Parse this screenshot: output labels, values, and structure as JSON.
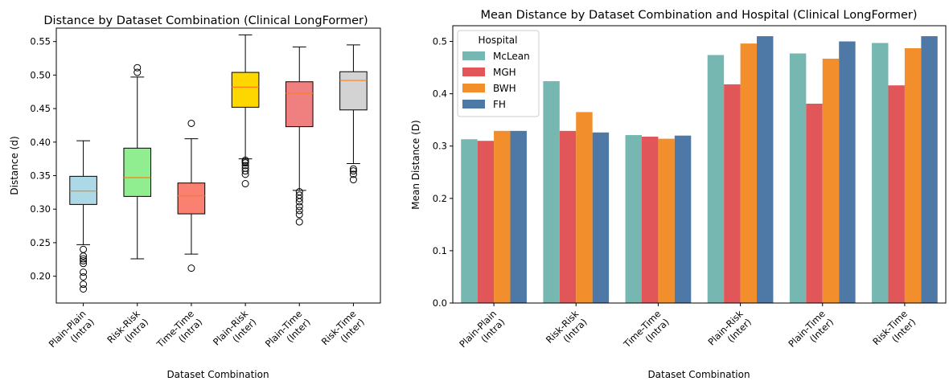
{
  "chart_data": [
    {
      "type": "box",
      "title": "Distance by Dataset Combination (Clinical LongFormer)",
      "xlabel": "Dataset Combination",
      "ylabel": "Distance (d)",
      "ylim": [
        0.16,
        0.57
      ],
      "yticks": [
        0.2,
        0.25,
        0.3,
        0.35,
        0.4,
        0.45,
        0.5,
        0.55
      ],
      "ytick_labels": [
        "0.20",
        "0.25",
        "0.30",
        "0.35",
        "0.40",
        "0.45",
        "0.50",
        "0.55"
      ],
      "grid": false,
      "categories": [
        [
          "Plain-Plain",
          "(Intra)"
        ],
        [
          "Risk-Risk",
          "(Intra)"
        ],
        [
          "Time-Time",
          "(Intra)"
        ],
        [
          "Plain-Risk",
          "(Inter)"
        ],
        [
          "Plain-Time",
          "(Inter)"
        ],
        [
          "Risk-Time",
          "(Inter)"
        ]
      ],
      "boxes": [
        {
          "whisker_low": 0.247,
          "q1": 0.307,
          "median": 0.327,
          "q3": 0.349,
          "whisker_high": 0.402,
          "outliers": [
            0.181,
            0.188,
            0.199,
            0.206,
            0.219,
            0.223,
            0.226,
            0.23,
            0.24
          ],
          "color": "#add8e6"
        },
        {
          "whisker_low": 0.226,
          "q1": 0.319,
          "median": 0.347,
          "q3": 0.391,
          "whisker_high": 0.497,
          "outliers": [
            0.504,
            0.511
          ],
          "color": "#90ee90"
        },
        {
          "whisker_low": 0.233,
          "q1": 0.293,
          "median": 0.32,
          "q3": 0.339,
          "whisker_high": 0.405,
          "outliers": [
            0.212,
            0.428
          ],
          "color": "#fa8072"
        },
        {
          "whisker_low": 0.375,
          "q1": 0.452,
          "median": 0.482,
          "q3": 0.504,
          "whisker_high": 0.56,
          "outliers": [
            0.338,
            0.352,
            0.357,
            0.361,
            0.365,
            0.369,
            0.371,
            0.373
          ],
          "color": "#ffd700"
        },
        {
          "whisker_low": 0.328,
          "q1": 0.423,
          "median": 0.473,
          "q3": 0.49,
          "whisker_high": 0.542,
          "outliers": [
            0.281,
            0.292,
            0.298,
            0.304,
            0.311,
            0.316,
            0.321,
            0.326
          ],
          "color": "#f08080"
        },
        {
          "whisker_low": 0.368,
          "q1": 0.448,
          "median": 0.492,
          "q3": 0.505,
          "whisker_high": 0.545,
          "outliers": [
            0.344,
            0.352,
            0.357,
            0.36
          ],
          "color": "#d3d3d3"
        }
      ],
      "median_color": "#ff7f0e"
    },
    {
      "type": "bar",
      "title": "Mean Distance by Dataset Combination and Hospital (Clinical LongFormer)",
      "xlabel": "Dataset Combination",
      "ylabel": "Mean Distance (D)",
      "ylim": [
        0,
        0.53
      ],
      "yticks": [
        0.0,
        0.1,
        0.2,
        0.3,
        0.4,
        0.5
      ],
      "ytick_labels": [
        "0.0",
        "0.1",
        "0.2",
        "0.3",
        "0.4",
        "0.5"
      ],
      "grid": false,
      "categories": [
        [
          "Plain-Plain",
          "(Intra)"
        ],
        [
          "Risk-Risk",
          "(Intra)"
        ],
        [
          "Time-Time",
          "(Intra)"
        ],
        [
          "Plain-Risk",
          "(Inter)"
        ],
        [
          "Plain-Time",
          "(Inter)"
        ],
        [
          "Risk-Time",
          "(Inter)"
        ]
      ],
      "legend": {
        "title": "Hospital",
        "position": "upper-left"
      },
      "series": [
        {
          "name": "McLean",
          "color": "#76b7b2",
          "values": [
            0.313,
            0.424,
            0.321,
            0.474,
            0.477,
            0.497
          ]
        },
        {
          "name": "MGH",
          "color": "#e15759",
          "values": [
            0.31,
            0.329,
            0.318,
            0.418,
            0.381,
            0.416
          ]
        },
        {
          "name": "BWH",
          "color": "#f28e2b",
          "values": [
            0.329,
            0.365,
            0.314,
            0.496,
            0.467,
            0.487
          ]
        },
        {
          "name": "FH",
          "color": "#4e79a7",
          "values": [
            0.329,
            0.326,
            0.32,
            0.51,
            0.5,
            0.51
          ]
        }
      ]
    }
  ]
}
